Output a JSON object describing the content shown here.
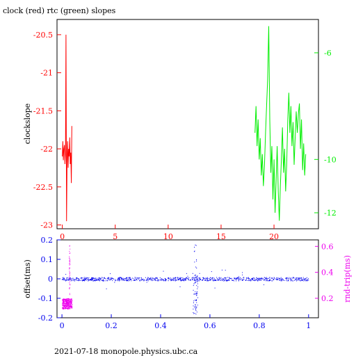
{
  "page": {
    "title": "clock (red) rtc (green) slopes",
    "footer": "2021-07-18  monopole.physics.ubc.ca"
  },
  "chart_data": [
    {
      "type": "line",
      "title": "clock (red) rtc (green) slopes",
      "ylabel": "clockslope",
      "xlim": [
        -0.5,
        24.2
      ],
      "ylim": [
        -23.05,
        -20.3
      ],
      "y2lim": [
        -12.6,
        -4.75
      ],
      "x_ticks": [
        0,
        5,
        10,
        15,
        20
      ],
      "y_ticks": [
        -20.5,
        -21,
        -21.5,
        -22,
        -22.5,
        -23
      ],
      "y2_ticks": [
        -6,
        -10,
        -12
      ],
      "colors": {
        "frame": "#000000",
        "left_axis": "#ff0000",
        "right_axis": "#00ee00",
        "bottom_axis": "#ff0000"
      },
      "series": [
        {
          "color": "#ff0000",
          "axis": "left",
          "x": [
            0.0,
            0.05,
            0.1,
            0.15,
            0.2,
            0.25,
            0.3,
            0.35,
            0.4,
            0.45,
            0.5,
            0.55,
            0.6,
            0.65,
            0.7,
            0.75,
            0.8,
            0.85,
            0.9
          ],
          "y": [
            -22.1,
            -21.9,
            -22.15,
            -22.0,
            -21.95,
            -22.2,
            -22.05,
            -20.5,
            -22.95,
            -22.1,
            -21.9,
            -22.25,
            -22.0,
            -22.1,
            -21.85,
            -22.2,
            -22.05,
            -22.45,
            -21.7
          ]
        },
        {
          "color": "#00ee00",
          "axis": "right",
          "x": [
            18.2,
            18.3,
            18.4,
            18.5,
            18.6,
            18.7,
            18.8,
            18.9,
            19.0,
            19.1,
            19.2,
            19.3,
            19.4,
            19.5,
            19.6,
            19.7,
            19.8,
            19.9,
            20.0,
            20.1,
            20.2,
            20.3,
            20.4,
            20.5,
            20.6,
            20.7,
            20.8,
            20.9,
            21.0,
            21.1,
            21.2,
            21.3,
            21.4,
            21.5,
            21.6,
            21.7,
            21.8,
            21.9,
            22.0,
            22.1,
            22.2,
            22.3,
            22.4,
            22.5,
            22.6,
            22.7,
            22.8,
            22.9,
            23.0
          ],
          "y": [
            -9.0,
            -8.0,
            -9.5,
            -8.5,
            -10.0,
            -9.2,
            -10.6,
            -9.8,
            -11.0,
            -10.2,
            -9.0,
            -8.0,
            -7.0,
            -5.0,
            -8.5,
            -10.5,
            -9.5,
            -11.5,
            -10.0,
            -12.0,
            -10.8,
            -9.5,
            -11.2,
            -12.3,
            -11.0,
            -10.0,
            -8.8,
            -10.5,
            -9.6,
            -11.2,
            -10.2,
            -8.5,
            -7.5,
            -9.0,
            -8.0,
            -9.5,
            -8.6,
            -10.2,
            -9.2,
            -8.2,
            -9.0,
            -8.3,
            -7.9,
            -9.6,
            -8.5,
            -10.4,
            -9.4,
            -10.6,
            -9.8
          ]
        }
      ]
    },
    {
      "type": "scatter",
      "ylabel": "offset(ms)",
      "y2label": "rnd-trip(ms)",
      "xlim": [
        -0.02,
        1.04
      ],
      "ylim": [
        -0.2,
        0.2
      ],
      "y2lim": [
        0.05,
        0.65
      ],
      "x_ticks": [
        "0",
        "0.2",
        "0.4",
        "0.6",
        "0.8",
        "1"
      ],
      "y_ticks": [
        "0.2",
        "0.1",
        "0",
        "-0.1",
        "-0.2"
      ],
      "y2_ticks": [
        "0.6",
        "0.4",
        "0.2"
      ],
      "colors": {
        "frame": "#000000",
        "left_axis": "#0000ee",
        "right_axis": "#ee00ee",
        "bottom_axis": "#0000ee"
      },
      "series": [
        {
          "color": "#0000ee",
          "axis": "left",
          "baseline": 0.0,
          "spike_x": 0.54,
          "spike_range": [
            -0.18,
            0.18
          ],
          "x_range": [
            0.0,
            1.0
          ]
        },
        {
          "color": "#ee00ee",
          "axis": "right",
          "x_range": [
            0.0,
            0.04
          ],
          "y_range": [
            0.12,
            0.2
          ],
          "spike_x": 0.03,
          "spike_top": 0.62
        }
      ]
    }
  ]
}
